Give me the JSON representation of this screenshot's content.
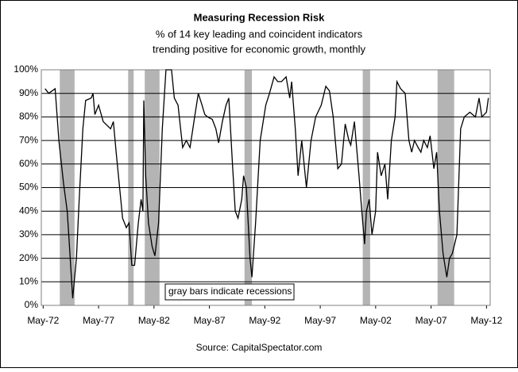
{
  "chart_data": {
    "type": "line",
    "title": "Measuring Recession Risk",
    "subtitle": [
      "% of 14 key leading and coincident indicators",
      "trending positive for economic growth, monthly"
    ],
    "source": "Source: CapitalSpectator.com",
    "annotation": "gray bars indicate recessions",
    "xlim": [
      "Mar-72",
      "Sep-12"
    ],
    "xticks": [
      "May-72",
      "May-77",
      "May-82",
      "May-87",
      "May-92",
      "May-97",
      "May-02",
      "May-07",
      "May-12"
    ],
    "ylim": [
      0,
      100
    ],
    "yticks": [
      {
        "value": 0,
        "label": "0%"
      },
      {
        "value": 10,
        "label": "10%"
      },
      {
        "value": 20,
        "label": "20%"
      },
      {
        "value": 30,
        "label": "30%"
      },
      {
        "value": 40,
        "label": "40%"
      },
      {
        "value": 50,
        "label": "50%"
      },
      {
        "value": 60,
        "label": "60%"
      },
      {
        "value": 70,
        "label": "70%"
      },
      {
        "value": 80,
        "label": "80%"
      },
      {
        "value": 90,
        "label": "90%"
      },
      {
        "value": 100,
        "label": "100%"
      }
    ],
    "grid": true,
    "recession_color": "#b4b4b4",
    "recessions": [
      {
        "start": "Nov-73",
        "end": "Mar-75"
      },
      {
        "start": "Jan-80",
        "end": "Jul-80"
      },
      {
        "start": "Jul-81",
        "end": "Nov-82"
      },
      {
        "start": "Jul-90",
        "end": "Mar-91"
      },
      {
        "start": "Mar-01",
        "end": "Nov-01"
      },
      {
        "start": "Dec-07",
        "end": "Jun-09"
      }
    ],
    "x": [
      "Jul-72",
      "Nov-72",
      "Jun-73",
      "Oct-73",
      "Mar-74",
      "Jul-74",
      "Sep-74",
      "Jan-75",
      "May-75",
      "Aug-75",
      "Dec-75",
      "Mar-76",
      "Sep-76",
      "Nov-76",
      "Jan-77",
      "May-77",
      "Oct-77",
      "Jun-78",
      "Sep-78",
      "Dec-78",
      "May-79",
      "Jul-79",
      "Nov-79",
      "Feb-80",
      "May-80",
      "Aug-80",
      "Dec-80",
      "Mar-81",
      "May-81",
      "Jun-81",
      "Aug-81",
      "Nov-81",
      "Mar-82",
      "Jun-82",
      "Oct-82",
      "Feb-83",
      "Jun-83",
      "Dec-83",
      "Mar-84",
      "Jul-84",
      "Dec-84",
      "Apr-85",
      "Aug-85",
      "Jan-86",
      "May-86",
      "Sep-86",
      "Dec-86",
      "Mar-87",
      "Aug-87",
      "Dec-87",
      "Mar-88",
      "Jul-88",
      "Nov-88",
      "Feb-89",
      "Jun-89",
      "Sep-89",
      "Dec-89",
      "Apr-90",
      "Jun-90",
      "Sep-90",
      "Jan-91",
      "Mar-91",
      "Jul-91",
      "Dec-91",
      "Jun-92",
      "Oct-92",
      "Mar-93",
      "Jul-93",
      "Nov-93",
      "Apr-94",
      "Aug-94",
      "Oct-94",
      "Feb-95",
      "May-95",
      "Sep-95",
      "Feb-96",
      "Jul-96",
      "Dec-96",
      "Jun-97",
      "Nov-97",
      "Mar-98",
      "Jul-98",
      "Dec-98",
      "Apr-99",
      "Aug-99",
      "Dec-99",
      "Feb-00",
      "Jun-00",
      "Nov-00",
      "Jan-01",
      "May-01",
      "Jul-01",
      "Oct-01",
      "Jan-02",
      "May-02",
      "Jul-02",
      "Nov-02",
      "Mar-03",
      "Jun-03",
      "Oct-03",
      "Feb-04",
      "Apr-04",
      "Aug-04",
      "Jan-05",
      "May-05",
      "Aug-05",
      "Nov-05",
      "Mar-06",
      "Jun-06",
      "Sep-06",
      "Jan-07",
      "Apr-07",
      "Aug-07",
      "Nov-07",
      "Feb-08",
      "Jun-08",
      "Oct-08",
      "Jan-09",
      "Apr-09",
      "Sep-09",
      "Jan-10",
      "May-10",
      "Nov-10",
      "May-11",
      "Sep-11",
      "Dec-11",
      "May-12",
      "Jul-12"
    ],
    "series": [
      {
        "color": "#000000",
        "values": [
          92,
          90,
          92,
          70,
          52,
          40,
          28,
          3,
          20,
          45,
          75,
          87,
          88,
          90,
          81,
          85,
          78,
          75,
          78,
          65,
          45,
          37,
          33,
          35,
          17,
          17,
          35,
          45,
          40,
          87,
          55,
          35,
          25,
          21,
          35,
          75,
          100,
          100,
          88,
          85,
          67,
          70,
          67,
          80,
          90,
          85,
          81,
          80,
          79,
          75,
          69,
          78,
          85,
          88,
          60,
          40,
          37,
          45,
          55,
          50,
          20,
          12,
          35,
          70,
          85,
          90,
          97,
          95,
          95,
          97,
          88,
          95,
          75,
          55,
          70,
          50,
          70,
          80,
          85,
          93,
          91,
          80,
          58,
          60,
          77,
          70,
          68,
          78,
          55,
          45,
          26,
          40,
          45,
          30,
          40,
          65,
          55,
          60,
          45,
          70,
          80,
          95,
          92,
          90,
          70,
          65,
          70,
          67,
          65,
          70,
          67,
          72,
          58,
          65,
          40,
          22,
          12,
          20,
          22,
          30,
          75,
          80,
          82,
          80,
          88,
          80,
          82,
          88
        ]
      }
    ]
  }
}
